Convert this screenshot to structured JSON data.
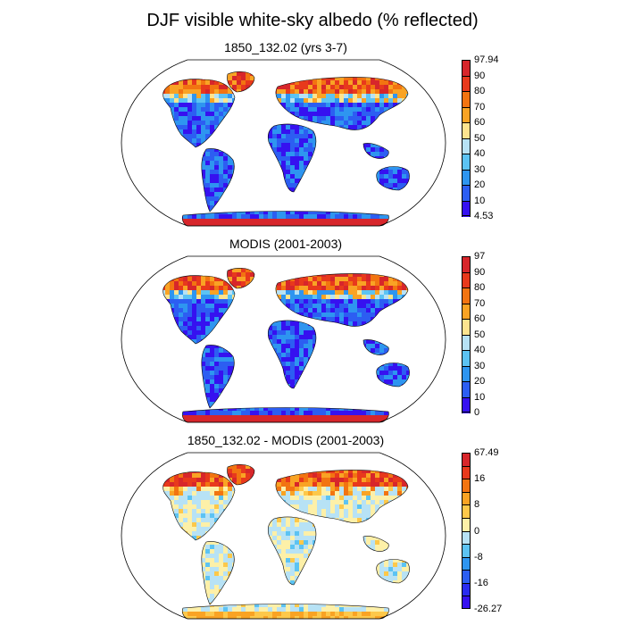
{
  "title": "DJF visible white-sky albedo (% reflected)",
  "panels": [
    {
      "id": "model",
      "title": "1850_132.02 (yrs 3-7)",
      "colorbar": {
        "labels": [
          "97.94",
          "90",
          "80",
          "70",
          "60",
          "50",
          "40",
          "30",
          "20",
          "10",
          "4.53"
        ],
        "colors": [
          "#d7262b",
          "#e8391c",
          "#f27411",
          "#f9a324",
          "#fde48f",
          "#b7e2f5",
          "#5cc3f3",
          "#2e95f0",
          "#2c5ef2",
          "#3611f0"
        ]
      },
      "style": "albedo"
    },
    {
      "id": "modis",
      "title": "MODIS (2001-2003)",
      "colorbar": {
        "labels": [
          "97",
          "90",
          "80",
          "70",
          "60",
          "50",
          "40",
          "30",
          "20",
          "10",
          "0"
        ],
        "colors": [
          "#d7262b",
          "#e8391c",
          "#f27411",
          "#f9a324",
          "#fde48f",
          "#b7e2f5",
          "#5cc3f3",
          "#2e95f0",
          "#2c5ef2",
          "#3611f0"
        ]
      },
      "style": "albedo"
    },
    {
      "id": "difference",
      "title": "1850_132.02 - MODIS (2001-2003)",
      "colorbar": {
        "labels": [
          "67.49",
          "",
          "16",
          "",
          "8",
          "",
          "0",
          "",
          "-8",
          "",
          "-16",
          "",
          "-26.27"
        ],
        "colors": [
          "#d7262b",
          "#e8391c",
          "#f27411",
          "#f9a324",
          "#fdc84a",
          "#fdf0a8",
          "#b7e2f5",
          "#5cc3f3",
          "#2e95f0",
          "#2c5ef2",
          "#2a2cf0",
          "#3611f0"
        ]
      },
      "style": "difference"
    }
  ]
}
